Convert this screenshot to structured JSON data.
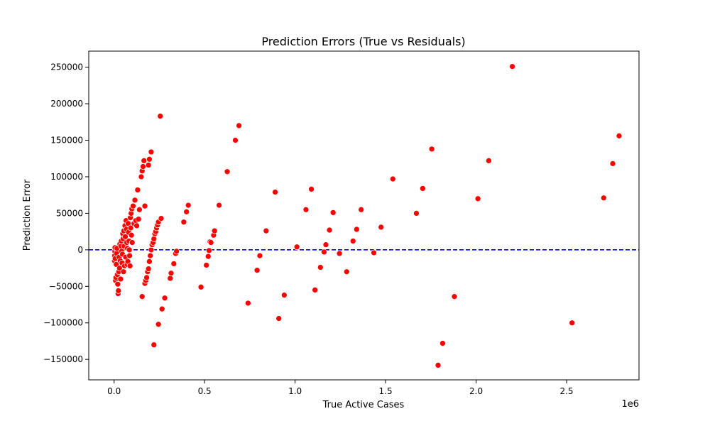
{
  "chart_data": {
    "type": "scatter",
    "title": "Prediction Errors (True vs Residuals)",
    "xlabel": "True Active Cases",
    "ylabel": "Prediction Error",
    "x_offset_label": "1e6",
    "xlim": [
      -0.14,
      2.9
    ],
    "ylim": [
      -178000,
      272000
    ],
    "xticks": [
      0.0,
      0.5,
      1.0,
      1.5,
      2.0,
      2.5
    ],
    "xtick_labels": [
      "0.0",
      "0.5",
      "1.0",
      "1.5",
      "2.0",
      "2.5"
    ],
    "yticks": [
      -150000,
      -100000,
      -50000,
      0,
      50000,
      100000,
      150000,
      200000,
      250000
    ],
    "ytick_labels": [
      "−150000",
      "−100000",
      "−50000",
      "0",
      "50000",
      "100000",
      "150000",
      "200000",
      "250000"
    ],
    "reference_line": {
      "y": 0,
      "color": "#0000ff",
      "style": "dashed"
    },
    "marker_color": "#ff0000",
    "grid": false,
    "points": [
      [
        0.002,
        -15000
      ],
      [
        0.003,
        -8000
      ],
      [
        0.004,
        -2000
      ],
      [
        0.005,
        3000
      ],
      [
        0.006,
        -12000
      ],
      [
        0.008,
        -42000
      ],
      [
        0.01,
        -38000
      ],
      [
        0.012,
        -20000
      ],
      [
        0.014,
        -5000
      ],
      [
        0.016,
        2000
      ],
      [
        0.018,
        -34000
      ],
      [
        0.02,
        -47000
      ],
      [
        0.022,
        -60000
      ],
      [
        0.024,
        -56000
      ],
      [
        0.026,
        -30000
      ],
      [
        0.028,
        -10000
      ],
      [
        0.03,
        -25000
      ],
      [
        0.032,
        8000
      ],
      [
        0.034,
        -15000
      ],
      [
        0.036,
        -40000
      ],
      [
        0.038,
        5000
      ],
      [
        0.04,
        12000
      ],
      [
        0.042,
        -2000
      ],
      [
        0.044,
        -18000
      ],
      [
        0.046,
        -6000
      ],
      [
        0.048,
        22000
      ],
      [
        0.05,
        15000
      ],
      [
        0.052,
        -30000
      ],
      [
        0.054,
        26000
      ],
      [
        0.056,
        5000
      ],
      [
        0.058,
        -22000
      ],
      [
        0.06,
        33000
      ],
      [
        0.062,
        18000
      ],
      [
        0.064,
        -10000
      ],
      [
        0.066,
        40000
      ],
      [
        0.068,
        28000
      ],
      [
        0.07,
        10000
      ],
      [
        0.072,
        -20000
      ],
      [
        0.074,
        2000
      ],
      [
        0.076,
        -16000
      ],
      [
        0.078,
        36000
      ],
      [
        0.08,
        24000
      ],
      [
        0.082,
        12000
      ],
      [
        0.084,
        0
      ],
      [
        0.086,
        -8000
      ],
      [
        0.088,
        -22000
      ],
      [
        0.09,
        44000
      ],
      [
        0.092,
        30000
      ],
      [
        0.094,
        50000
      ],
      [
        0.096,
        20000
      ],
      [
        0.098,
        56000
      ],
      [
        0.1,
        10000
      ],
      [
        0.105,
        60000
      ],
      [
        0.11,
        36000
      ],
      [
        0.115,
        68000
      ],
      [
        0.12,
        40000
      ],
      [
        0.125,
        33000
      ],
      [
        0.13,
        82000
      ],
      [
        0.135,
        42000
      ],
      [
        0.14,
        55000
      ],
      [
        0.15,
        100000
      ],
      [
        0.155,
        108000
      ],
      [
        0.16,
        114000
      ],
      [
        0.165,
        122000
      ],
      [
        0.17,
        60000
      ],
      [
        0.155,
        -64000
      ],
      [
        0.17,
        -46000
      ],
      [
        0.175,
        -42000
      ],
      [
        0.18,
        -38000
      ],
      [
        0.185,
        -30000
      ],
      [
        0.19,
        -26000
      ],
      [
        0.195,
        -16000
      ],
      [
        0.2,
        -8000
      ],
      [
        0.205,
        0
      ],
      [
        0.21,
        7000
      ],
      [
        0.215,
        10000
      ],
      [
        0.22,
        15000
      ],
      [
        0.225,
        22000
      ],
      [
        0.23,
        25000
      ],
      [
        0.235,
        30000
      ],
      [
        0.24,
        34000
      ],
      [
        0.245,
        38000
      ],
      [
        0.19,
        116000
      ],
      [
        0.195,
        124000
      ],
      [
        0.205,
        134000
      ],
      [
        0.22,
        -130000
      ],
      [
        0.245,
        -102000
      ],
      [
        0.255,
        183000
      ],
      [
        0.26,
        43000
      ],
      [
        0.265,
        -81000
      ],
      [
        0.28,
        -66000
      ],
      [
        0.31,
        -39000
      ],
      [
        0.315,
        -32000
      ],
      [
        0.33,
        -19000
      ],
      [
        0.34,
        -5000
      ],
      [
        0.345,
        -2000
      ],
      [
        0.385,
        38000
      ],
      [
        0.4,
        52000
      ],
      [
        0.41,
        61000
      ],
      [
        0.48,
        -51000
      ],
      [
        0.51,
        -21000
      ],
      [
        0.52,
        -9000
      ],
      [
        0.525,
        -1000
      ],
      [
        0.53,
        11000
      ],
      [
        0.535,
        10000
      ],
      [
        0.55,
        20000
      ],
      [
        0.555,
        26000
      ],
      [
        0.58,
        61000
      ],
      [
        0.625,
        107000
      ],
      [
        0.67,
        150000
      ],
      [
        0.69,
        170000
      ],
      [
        0.74,
        -73000
      ],
      [
        0.79,
        -28000
      ],
      [
        0.805,
        -8000
      ],
      [
        0.84,
        26000
      ],
      [
        0.89,
        79000
      ],
      [
        0.91,
        -94000
      ],
      [
        0.94,
        -62000
      ],
      [
        1.01,
        4000
      ],
      [
        1.06,
        55000
      ],
      [
        1.09,
        83000
      ],
      [
        1.11,
        -55000
      ],
      [
        1.14,
        -24000
      ],
      [
        1.16,
        -3000
      ],
      [
        1.17,
        7000
      ],
      [
        1.19,
        27000
      ],
      [
        1.21,
        51000
      ],
      [
        1.245,
        -5000
      ],
      [
        1.285,
        -30000
      ],
      [
        1.32,
        12000
      ],
      [
        1.34,
        28000
      ],
      [
        1.365,
        55000
      ],
      [
        1.435,
        -4000
      ],
      [
        1.475,
        31000
      ],
      [
        1.54,
        97000
      ],
      [
        1.67,
        50000
      ],
      [
        1.705,
        84000
      ],
      [
        1.755,
        138000
      ],
      [
        1.79,
        -158000
      ],
      [
        1.815,
        -128000
      ],
      [
        1.88,
        -64000
      ],
      [
        2.01,
        70000
      ],
      [
        2.07,
        122000
      ],
      [
        2.2,
        251000
      ],
      [
        2.53,
        -100000
      ],
      [
        2.705,
        71000
      ],
      [
        2.755,
        118000
      ],
      [
        2.79,
        156000
      ]
    ]
  }
}
